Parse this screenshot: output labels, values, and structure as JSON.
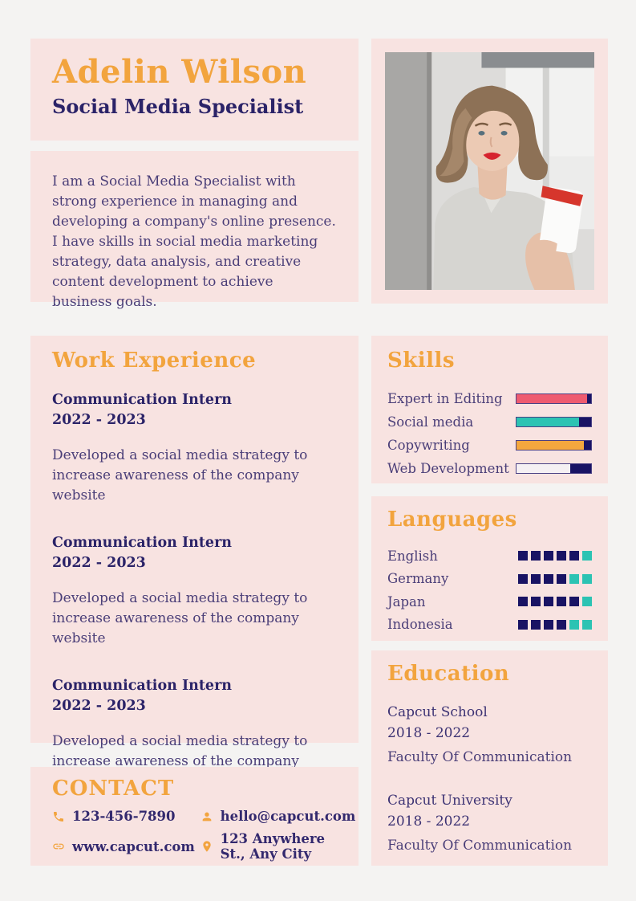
{
  "colors": {
    "page_bg": "#f4f3f2",
    "panel_pink": "#f8e3e1",
    "accent_orange": "#f2a43e",
    "heading_navy": "#2b2368",
    "body_purple": "#4a3e78",
    "bar_navy": "#191364",
    "teal": "#2cc3b3",
    "bar_pink": "#ee5b70",
    "bar_light": "#f5f0f3"
  },
  "header": {
    "name": "Adelin Wilson",
    "title": "Social Media Specialist"
  },
  "about": {
    "text": "I am a Social Media Specialist with strong experience in managing and developing a company's online presence. I have skills in social media marketing strategy, data analysis, and creative content development to achieve business goals."
  },
  "photo": {
    "alt": "Portrait photo: woman with short brown hair, red lipstick, grey blouse, holding a cup"
  },
  "work": {
    "heading": "Work Experience",
    "items": [
      {
        "role": "Communication Intern",
        "period": "2022 - 2023",
        "description": "Developed a social media strategy to increase awareness of the company website"
      },
      {
        "role": "Communication Intern",
        "period": "2022 - 2023",
        "description": "Developed a social media strategy to increase awareness of the company website"
      },
      {
        "role": "Communication Intern",
        "period": "2022 - 2023",
        "description": "Developed a social media strategy to increase awareness of the company website"
      }
    ]
  },
  "skills": {
    "heading": "Skills",
    "items": [
      {
        "label": "Expert in Editing",
        "percent": 95,
        "color": "#ee5b70"
      },
      {
        "label": "Social media",
        "percent": 84,
        "color": "#2cc3b3"
      },
      {
        "label": "Copywriting",
        "percent": 90,
        "color": "#f4a73e"
      },
      {
        "label": "Web Development",
        "percent": 72,
        "color": "#f5f0f3"
      }
    ]
  },
  "languages": {
    "heading": "Languages",
    "total_blocks": 6,
    "filled_color": "#191364",
    "rest_color": "#2cc3b3",
    "items": [
      {
        "label": "English",
        "filled": 5
      },
      {
        "label": "Germany",
        "filled": 4
      },
      {
        "label": "Japan",
        "filled": 5
      },
      {
        "label": "Indonesia",
        "filled": 4
      }
    ]
  },
  "education": {
    "heading": "Education",
    "items": [
      {
        "school": "Capcut School",
        "period": "2018 - 2022",
        "faculty": "Faculty Of Communication"
      },
      {
        "school": "Capcut University",
        "period": "2018 - 2022",
        "faculty": "Faculty Of Communication"
      }
    ]
  },
  "contact": {
    "heading": "CONTACT",
    "items": [
      {
        "icon": "phone-icon",
        "value": "123-456-7890"
      },
      {
        "icon": "person-icon",
        "value": "hello@capcut.com"
      },
      {
        "icon": "link-icon",
        "value": "www.capcut.com"
      },
      {
        "icon": "pin-icon",
        "value": "123 Anywhere St., Any City"
      }
    ]
  }
}
